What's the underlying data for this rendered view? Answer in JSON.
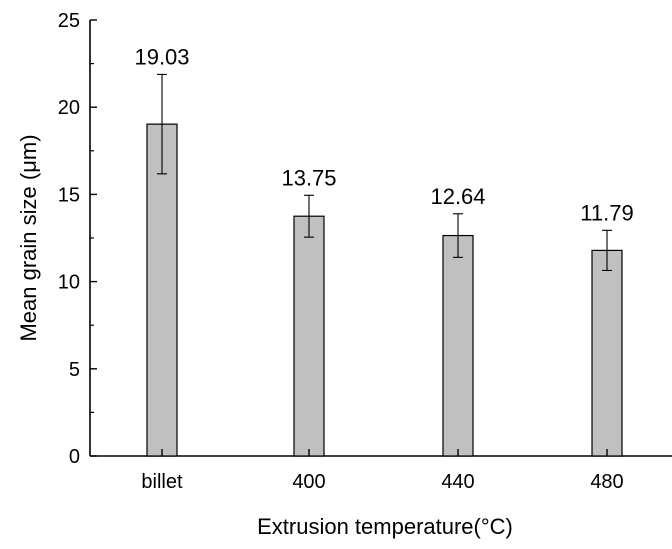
{
  "chart_data": {
    "type": "bar",
    "categories": [
      "billet",
      "400",
      "440",
      "480"
    ],
    "values": [
      19.03,
      13.75,
      12.64,
      11.79
    ],
    "error": [
      2.85,
      1.2,
      1.25,
      1.15
    ],
    "data_labels": [
      "19.03",
      "13.75",
      "12.64",
      "11.79"
    ],
    "title": "",
    "xlabel": "Extrusion temperature(°C)",
    "ylabel": "Mean grain size (μm)",
    "ylim": [
      0,
      25
    ],
    "yticks": [
      "0",
      "5",
      "10",
      "15",
      "20",
      "25"
    ],
    "grid": false,
    "bar_color": "#c0c0c0",
    "bar_edge_color": "#000000"
  }
}
